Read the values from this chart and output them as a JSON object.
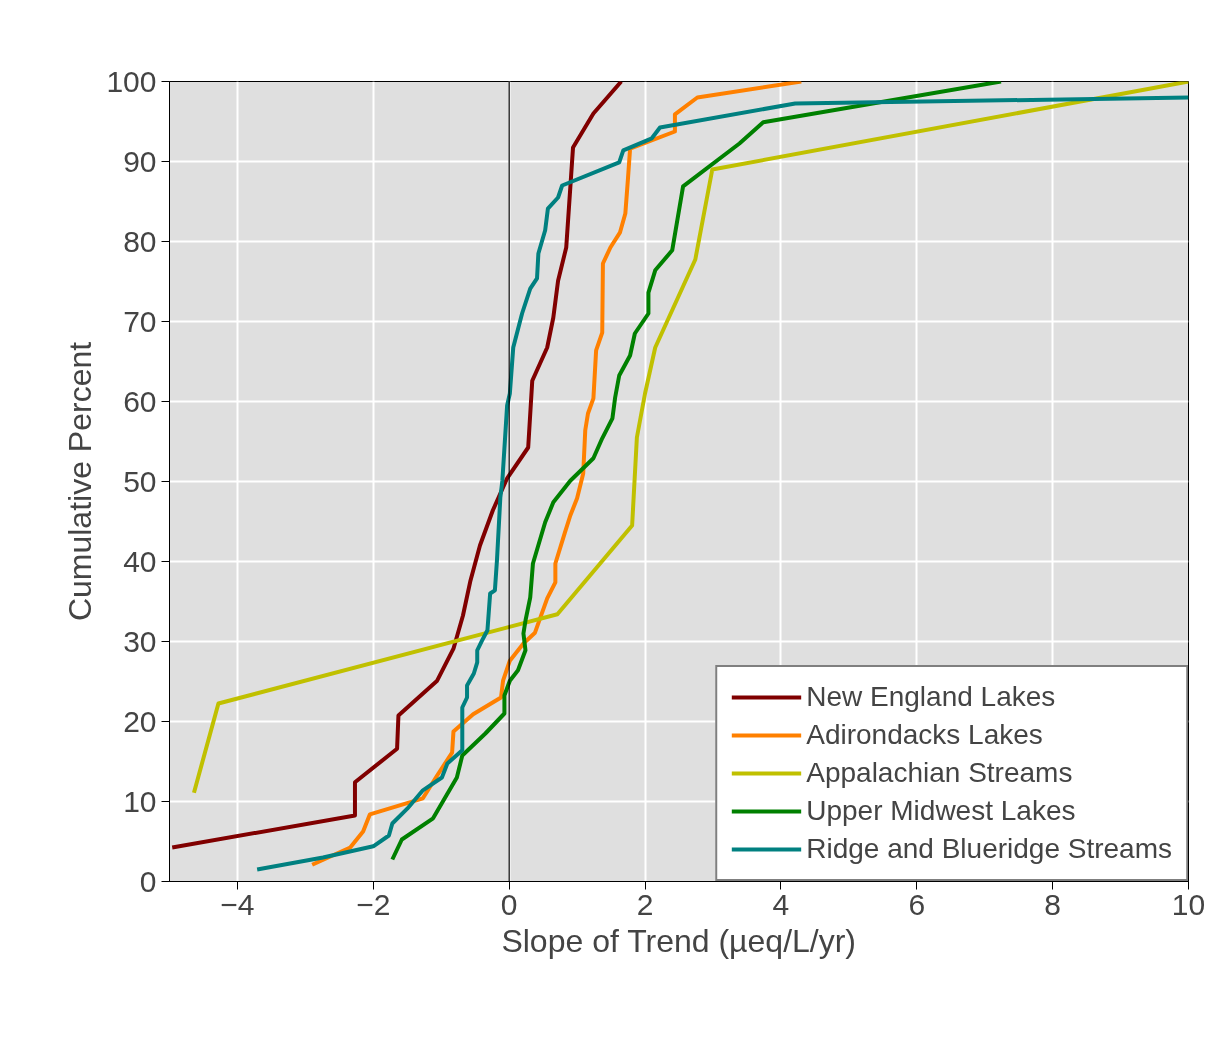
{
  "chart_data": {
    "type": "line",
    "xlabel": "Slope of Trend (µeq/L/yr)",
    "ylabel": "Cumulative Percent",
    "xlim": [
      -5,
      10
    ],
    "xticks": [
      -4,
      -2,
      0,
      2,
      4,
      6,
      8,
      10
    ],
    "ylim": [
      0,
      100
    ],
    "yticks": [
      0,
      10,
      20,
      30,
      40,
      50,
      60,
      70,
      80,
      90,
      100
    ],
    "grid": true,
    "legend": "bottom right",
    "line_style": "solid",
    "ref_lines": [
      {
        "axis": "x",
        "value": 0,
        "color": "#000000"
      }
    ],
    "series": [
      {
        "name": "New England Lakes",
        "color": "#800000",
        "x": [
          -4.96,
          -2.27,
          -2.27,
          -1.65,
          -1.63,
          -1.06,
          -0.82,
          -0.68,
          -0.57,
          -0.43,
          -0.24,
          -0.03,
          0.28,
          0.34,
          0.56,
          0.65,
          0.72,
          0.84,
          0.94,
          1.24,
          1.65
        ],
        "values": [
          4.25,
          8.25,
          12.4,
          16.6,
          20.75,
          25.1,
          29.1,
          33.25,
          37.6,
          42,
          46.4,
          50.4,
          54.25,
          62.6,
          66.75,
          70.5,
          75.1,
          79.25,
          91.75,
          96,
          100
        ]
      },
      {
        "name": "Adirondacks Lakes",
        "color": "#ff8000",
        "x": [
          -2.9,
          -2.34,
          -2.15,
          -2.05,
          -1.27,
          -1.06,
          -0.84,
          -0.82,
          -0.53,
          -0.12,
          -0.09,
          0.01,
          0.21,
          0.38,
          0.56,
          0.68,
          0.68,
          0.82,
          0.9,
          1.0,
          1.09,
          1.12,
          1.16,
          1.24,
          1.28,
          1.37,
          1.38,
          1.49,
          1.63,
          1.71,
          1.75,
          1.78,
          2.44,
          2.44,
          2.77,
          4.3
        ],
        "values": [
          2.1,
          4.25,
          6.25,
          8.4,
          10.4,
          13.25,
          16.1,
          18.75,
          20.9,
          23,
          25.1,
          27.6,
          29.75,
          31.1,
          35.4,
          37.4,
          39.75,
          43.6,
          45.75,
          47.9,
          51,
          56.4,
          58.5,
          60.4,
          66.4,
          68.6,
          77.25,
          79.25,
          81.1,
          83.5,
          88,
          91.6,
          93.75,
          95.9,
          98,
          100
        ]
      },
      {
        "name": "Appalachian Streams",
        "color": "#c0c000",
        "x": [
          -4.64,
          -4.28,
          0.71,
          1.81,
          1.88,
          2.0,
          2.15,
          2.74,
          2.99,
          10
        ],
        "values": [
          11.1,
          22.25,
          33.4,
          44.5,
          55.5,
          61,
          66.75,
          77.75,
          89,
          100
        ]
      },
      {
        "name": "Upper Midwest Lakes",
        "color": "#008000",
        "x": [
          -1.72,
          -1.58,
          -1.12,
          -0.77,
          -0.69,
          -0.35,
          -0.07,
          -0.07,
          0.01,
          0.13,
          0.24,
          0.21,
          0.24,
          0.31,
          0.35,
          0.53,
          0.65,
          0.9,
          1.24,
          1.37,
          1.52,
          1.56,
          1.62,
          1.78,
          1.85,
          2.05,
          2.05,
          2.15,
          2.4,
          2.56,
          3.39,
          3.74,
          7.24
        ],
        "values": [
          2.75,
          5.25,
          7.9,
          13,
          15.75,
          18.5,
          21,
          23.25,
          25.1,
          26.4,
          28.9,
          31,
          32.6,
          35.5,
          39.75,
          44.9,
          47.4,
          50.1,
          52.9,
          55.4,
          57.9,
          60.5,
          63.25,
          65.75,
          68.5,
          71,
          73.6,
          76.4,
          78.9,
          86.9,
          92.25,
          94.9,
          100
        ]
      },
      {
        "name": "Ridge and Blueridge Streams",
        "color": "#008080",
        "x": [
          -3.71,
          -2.74,
          -2.0,
          -1.77,
          -1.72,
          -1.5,
          -1.27,
          -0.99,
          -0.91,
          -0.69,
          -0.69,
          -0.62,
          -0.62,
          -0.52,
          -0.47,
          -0.47,
          -0.4,
          -0.32,
          -0.28,
          -0.21,
          -0.18,
          -0.13,
          -0.1,
          -0.03,
          0.01,
          0.06,
          0.19,
          0.31,
          0.41,
          0.43,
          0.53,
          0.57,
          0.72,
          0.78,
          1.62,
          1.68,
          2.1,
          2.22,
          4.21,
          10
        ],
        "values": [
          1.5,
          3,
          4.4,
          5.75,
          7.25,
          9.1,
          11.4,
          13,
          14.75,
          16.4,
          21.75,
          23,
          24.5,
          26,
          27.4,
          28.9,
          30.1,
          31.4,
          36,
          36.4,
          40.1,
          48,
          50.1,
          59.5,
          61,
          66.75,
          71,
          74.1,
          75.4,
          78.5,
          81.4,
          84.1,
          85.5,
          87,
          89.9,
          91.4,
          92.9,
          94.25,
          97.25,
          98
        ]
      }
    ]
  }
}
